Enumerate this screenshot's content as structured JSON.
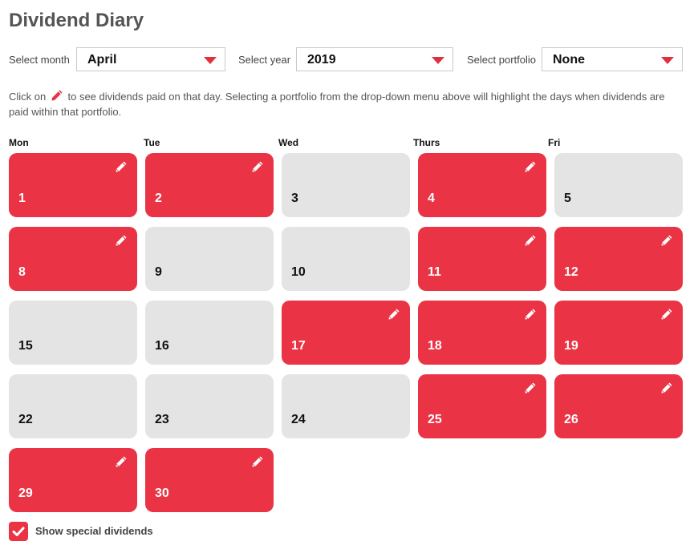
{
  "title": "Dividend Diary",
  "filters": {
    "month": {
      "label": "Select month",
      "value": "April"
    },
    "year": {
      "label": "Select year",
      "value": "2019"
    },
    "portfolio": {
      "label": "Select portfolio",
      "value": "None"
    }
  },
  "info": {
    "before": "Click on",
    "icon": "pencil-icon",
    "after": "to see dividends paid on that day. Selecting a portfolio from the drop-down menu above will highlight the days when dividends are paid within that portfolio."
  },
  "days": [
    "Mon",
    "Tue",
    "Wed",
    "Thurs",
    "Fri"
  ],
  "weeks": [
    [
      {
        "day": "1",
        "dividend": true
      },
      {
        "day": "2",
        "dividend": true
      },
      {
        "day": "3",
        "dividend": false
      },
      {
        "day": "4",
        "dividend": true
      },
      {
        "day": "5",
        "dividend": false
      }
    ],
    [
      {
        "day": "8",
        "dividend": true
      },
      {
        "day": "9",
        "dividend": false
      },
      {
        "day": "10",
        "dividend": false
      },
      {
        "day": "11",
        "dividend": true
      },
      {
        "day": "12",
        "dividend": true
      }
    ],
    [
      {
        "day": "15",
        "dividend": false
      },
      {
        "day": "16",
        "dividend": false
      },
      {
        "day": "17",
        "dividend": true
      },
      {
        "day": "18",
        "dividend": true
      },
      {
        "day": "19",
        "dividend": true
      }
    ],
    [
      {
        "day": "22",
        "dividend": false
      },
      {
        "day": "23",
        "dividend": false
      },
      {
        "day": "24",
        "dividend": false
      },
      {
        "day": "25",
        "dividend": true
      },
      {
        "day": "26",
        "dividend": true
      }
    ],
    [
      {
        "day": "29",
        "dividend": true
      },
      {
        "day": "30",
        "dividend": true
      }
    ]
  ],
  "special_dividends": {
    "label": "Show special dividends",
    "checked": true
  },
  "colors": {
    "accent": "#ea3344",
    "inactive": "#e4e4e4"
  }
}
